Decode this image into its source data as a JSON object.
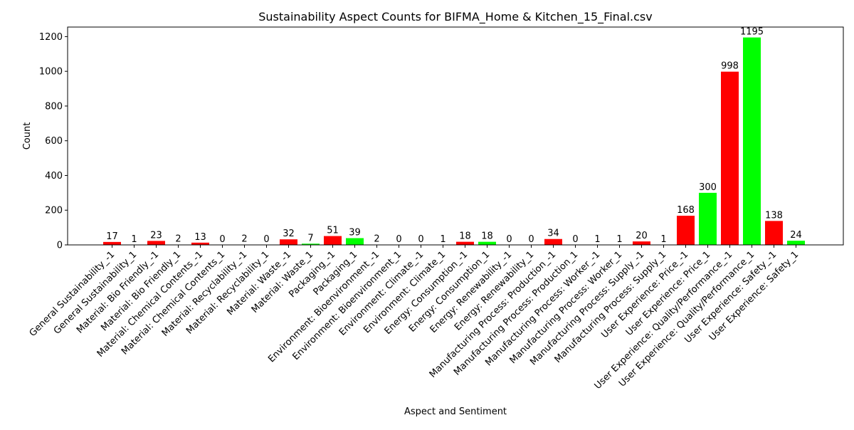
{
  "chart_data": {
    "type": "bar",
    "title": "Sustainability Aspect Counts for BIFMA_Home & Kitchen_15_Final.csv",
    "xlabel": "Aspect and Sentiment",
    "ylabel": "Count",
    "ylim": [
      0,
      1255
    ],
    "yticks": [
      0,
      200,
      400,
      600,
      800,
      1000,
      1200
    ],
    "grid": false,
    "colors": {
      "negative": "#ff0000",
      "positive": "#00ff00"
    },
    "categories": [
      "General Sustainability_-1",
      "General Sustainability_1",
      "Material: Bio Friendly_-1",
      "Material: Bio Friendly_1",
      "Material: Chemical Contents_-1",
      "Material: Chemical Contents_1",
      "Material: Recyclability_-1",
      "Material: Recyclability_1",
      "Material: Waste_-1",
      "Material: Waste_1",
      "Packaging_-1",
      "Packaging_1",
      "Environment: Bioenvironment_-1",
      "Environment: Bioenvironment_1",
      "Environment: Climate_-1",
      "Environment: Climate_1",
      "Energy: Consumption_-1",
      "Energy: Consumption_1",
      "Energy: Renewability_-1",
      "Energy: Renewability_1",
      "Manufacturing Process: Production_-1",
      "Manufacturing Process: Production_1",
      "Manufacturing Process: Worker_-1",
      "Manufacturing Process: Worker_1",
      "Manufacturing Process: Supply_-1",
      "Manufacturing Process: Supply_1",
      "User Experience: Price_-1",
      "User Experience: Price_1",
      "User Experience: Quality/Performance_-1",
      "User Experience: Quality/Performance_1",
      "User Experience: Safety_-1",
      "User Experience: Safety_1"
    ],
    "values": [
      17,
      1,
      23,
      2,
      13,
      0,
      2,
      0,
      32,
      7,
      51,
      39,
      2,
      0,
      0,
      1,
      18,
      18,
      0,
      0,
      34,
      0,
      1,
      1,
      20,
      1,
      168,
      300,
      998,
      1195,
      138,
      24
    ],
    "sentiments": [
      -1,
      1,
      -1,
      1,
      -1,
      1,
      -1,
      1,
      -1,
      1,
      -1,
      1,
      -1,
      1,
      -1,
      1,
      -1,
      1,
      -1,
      1,
      -1,
      1,
      -1,
      1,
      -1,
      1,
      -1,
      1,
      -1,
      1,
      -1,
      1
    ]
  }
}
